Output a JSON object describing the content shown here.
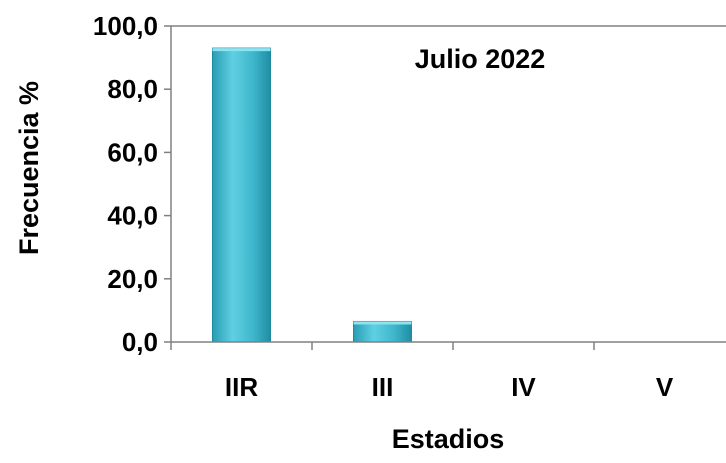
{
  "chart_data": {
    "type": "bar",
    "title": "Julio 2022",
    "xlabel": "Estadios",
    "ylabel": "Frecuencia %",
    "categories": [
      "IIR",
      "III",
      "IV",
      "V"
    ],
    "values": [
      93.0,
      6.5,
      0.0,
      0.0
    ],
    "ylim": [
      0,
      100
    ],
    "yticks": [
      "0,0",
      "20,0",
      "40,0",
      "60,0",
      "80,0",
      "100,0"
    ],
    "grid": false,
    "legend": "none",
    "bar_color": "#3fb6cc",
    "bar_edge_color": "#1d8aa0"
  }
}
